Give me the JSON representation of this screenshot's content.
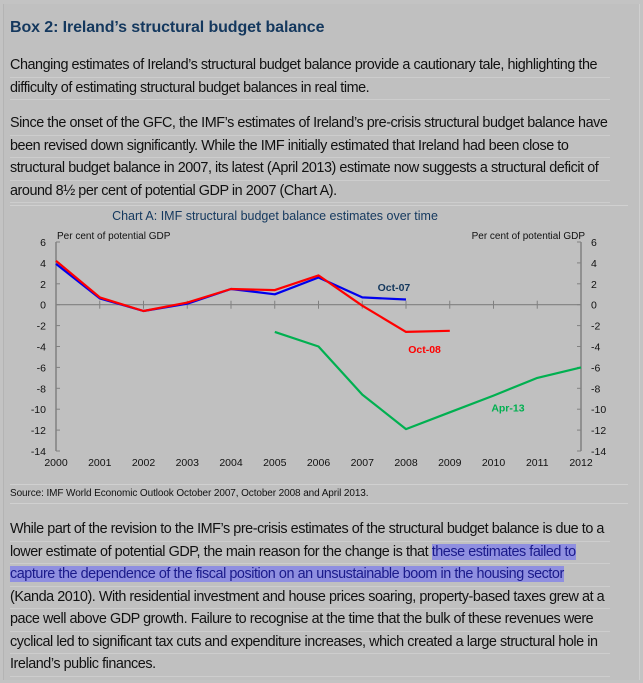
{
  "box_title": "Box 2: Ireland’s structural budget balance",
  "paragraphs": [
    {
      "lines": [
        "Changing estimates of Ireland’s structural budget balance provide a cautionary tale, highlighting the",
        "difficulty of estimating structural budget balances in real time."
      ]
    },
    {
      "lines": [
        "Since the onset of the GFC, the IMF’s estimates of Ireland’s pre-crisis structural budget balance have",
        "been revised down significantly. While the IMF initially estimated that Ireland had been close to",
        "structural budget balance in 2007, its latest (April 2013) estimate now suggests a structural deficit of",
        "around 8½ per cent of potential GDP in 2007 (Chart A)."
      ]
    }
  ],
  "closing_paragraph": {
    "line1": "While part of the revision to the IMF’s pre-crisis estimates of the structural budget balance is due to a",
    "line2_plain": "lower estimate of potential GDP, the main reason for the change is that ",
    "line2_highlight": "these estimates failed to",
    "line3_highlight": "capture the dependence of the fiscal position on an unsustainable boom in the housing sector",
    "line4": "(Kanda 2010). With residential investment and house prices soaring, property-based taxes grew at a",
    "line5": "pace well above GDP growth. Failure to recognise at the time that the bulk of these revenues were",
    "line6": "cyclical led to significant tax cuts and expenditure increases, which created a large structural hole in",
    "line7": "Ireland’s public finances."
  },
  "source": "Source: IMF World Economic Outlook October 2007, October 2008 and April 2013.",
  "colors": {
    "title": "#14385e",
    "oct07": "#0000ee",
    "oct08": "#ff0000",
    "apr13": "#00b050",
    "oct07_label": "#14385e",
    "axis": "#808080",
    "highlight": "#8f8fe0"
  },
  "chart_data": {
    "type": "line",
    "title": "Chart A: IMF structural budget balance estimates over time",
    "ylabel_left": "Per cent of potential GDP",
    "ylabel_right": "Per cent of potential GDP",
    "xlabel": "",
    "x": [
      2000,
      2001,
      2002,
      2003,
      2004,
      2005,
      2006,
      2007,
      2008,
      2009,
      2010,
      2011,
      2012
    ],
    "x_tick_labels": [
      "2000",
      "2001",
      "2002",
      "2003",
      "2004",
      "2005",
      "2006",
      "2007",
      "2008",
      "2009",
      "2010",
      "2011",
      "2012"
    ],
    "ylim": [
      -14,
      6
    ],
    "y_ticks": [
      6,
      4,
      2,
      0,
      -2,
      -4,
      -6,
      -8,
      -10,
      -12,
      -14
    ],
    "y_tick_labels": [
      "6",
      "4",
      "2",
      "0",
      "-2",
      "-4",
      "-6",
      "-8",
      "-10",
      "-12",
      "-14"
    ],
    "grid": false,
    "legend": "inline-labels",
    "series": [
      {
        "name": "Oct-07",
        "label": "Oct-07",
        "x": [
          2000,
          2001,
          2002,
          2003,
          2004,
          2005,
          2006,
          2007,
          2008
        ],
        "values": [
          3.9,
          0.6,
          -0.6,
          0.1,
          1.5,
          1.0,
          2.6,
          0.7,
          0.5
        ]
      },
      {
        "name": "Oct-08",
        "label": "Oct-08",
        "x": [
          2000,
          2001,
          2002,
          2003,
          2004,
          2005,
          2006,
          2007,
          2008,
          2009
        ],
        "values": [
          4.2,
          0.7,
          -0.6,
          0.2,
          1.5,
          1.4,
          2.8,
          -0.1,
          -2.6,
          -2.5
        ]
      },
      {
        "name": "Apr-13",
        "label": "Apr-13",
        "x": [
          2005,
          2006,
          2007,
          2008,
          2009,
          2010,
          2011,
          2012
        ],
        "values": [
          -2.6,
          -4.0,
          -8.6,
          -11.9,
          -10.3,
          -8.7,
          -7.0,
          -6.0
        ]
      }
    ]
  }
}
